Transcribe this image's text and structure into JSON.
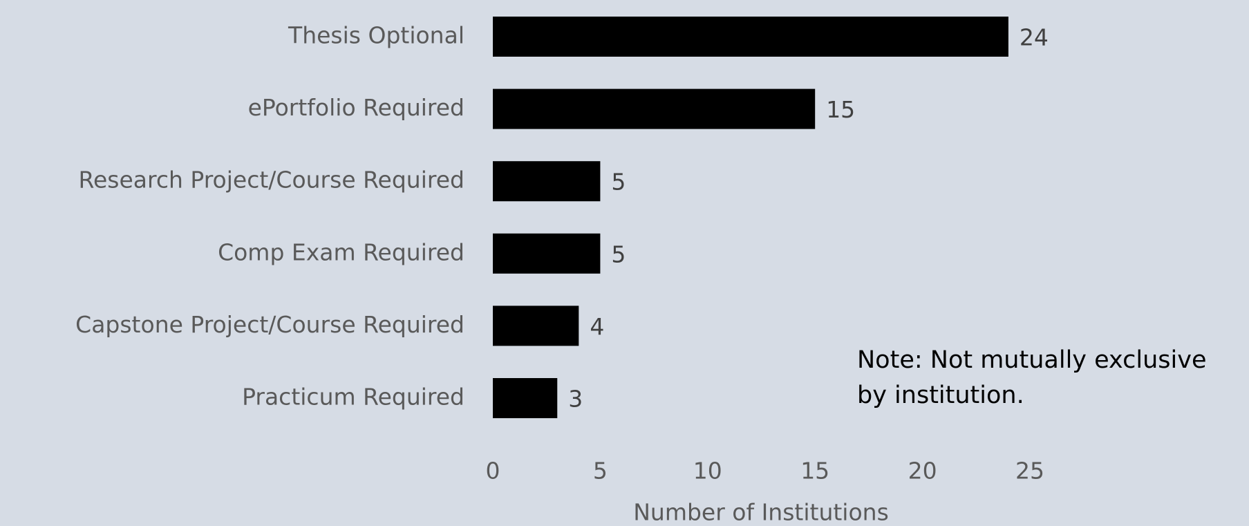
{
  "chart_data": {
    "type": "bar",
    "orientation": "horizontal",
    "categories": [
      "Thesis Optional",
      "ePortfolio Required",
      "Research Project/Course Required",
      "Comp Exam Required",
      "Capstone Project/Course Required",
      "Practicum Required"
    ],
    "values": [
      24,
      15,
      5,
      5,
      4,
      3
    ],
    "color": "#000000",
    "xlabel": "Number of Institutions",
    "xlim": [
      0,
      25
    ],
    "xticks": [
      0,
      5,
      10,
      15,
      20,
      25
    ],
    "grid": false,
    "note": [
      "Note: Not mutually exclusive",
      "by institution."
    ]
  }
}
